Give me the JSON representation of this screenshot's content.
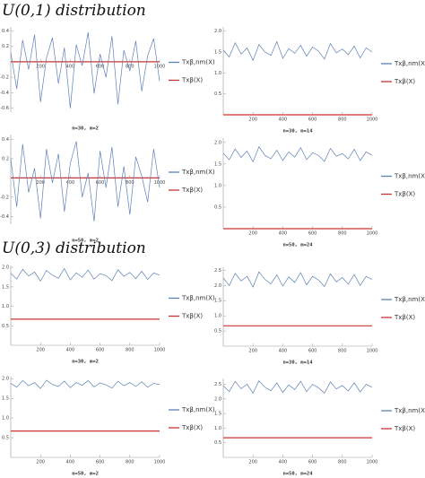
{
  "sections": [
    {
      "title": "U(0,1) distribution"
    },
    {
      "title": "U(0,3) distribution"
    }
  ],
  "chart_data": [
    {
      "type": "line",
      "caption": "n=30, m=2",
      "x": [
        0,
        40,
        80,
        120,
        160,
        200,
        240,
        280,
        320,
        360,
        400,
        440,
        480,
        520,
        560,
        600,
        640,
        680,
        720,
        760,
        800,
        840,
        880,
        920,
        960,
        1000
      ],
      "xlim": [
        0,
        1000
      ],
      "xticks": [
        200,
        400,
        600,
        800,
        1000
      ],
      "ylim": [
        -0.65,
        0.45
      ],
      "yticks": [
        -0.6,
        -0.4,
        -0.2,
        0.2,
        0.4
      ],
      "series": [
        {
          "name": "Txβ,nm(X)",
          "color": "#5e81b5",
          "values": [
            0.12,
            -0.35,
            0.28,
            -0.1,
            0.35,
            -0.52,
            0.05,
            0.31,
            -0.28,
            0.18,
            -0.6,
            0.22,
            -0.05,
            0.38,
            -0.41,
            0.1,
            -0.2,
            0.33,
            -0.55,
            0.15,
            -0.12,
            0.27,
            -0.38,
            0.08,
            0.3,
            -0.25
          ]
        },
        {
          "name": "Txβ(X)",
          "color": "#cc3333",
          "values": [
            0,
            0,
            0,
            0,
            0,
            0,
            0,
            0,
            0,
            0,
            0,
            0,
            0,
            0,
            0,
            0,
            0,
            0,
            0,
            0,
            0,
            0,
            0,
            0,
            0,
            0
          ]
        }
      ]
    },
    {
      "type": "line",
      "caption": "n=30, m=14",
      "x": [
        0,
        40,
        80,
        120,
        160,
        200,
        240,
        280,
        320,
        360,
        400,
        440,
        480,
        520,
        560,
        600,
        640,
        680,
        720,
        760,
        800,
        840,
        880,
        920,
        960,
        1000
      ],
      "xlim": [
        0,
        1000
      ],
      "xticks": [
        200,
        400,
        600,
        800,
        1000
      ],
      "ylim": [
        0,
        2.1
      ],
      "yticks": [
        0.5,
        {
          "value": 1,
          "label": "1.0"
        },
        1.5,
        {
          "value": 2,
          "label": "2.0"
        }
      ],
      "series": [
        {
          "name": "Txβ,nm(X)",
          "color": "#5e81b5",
          "values": [
            1.55,
            1.38,
            1.72,
            1.45,
            1.6,
            1.3,
            1.68,
            1.5,
            1.42,
            1.75,
            1.35,
            1.58,
            1.47,
            1.66,
            1.4,
            1.62,
            1.52,
            1.33,
            1.7,
            1.48,
            1.57,
            1.44,
            1.64,
            1.36,
            1.6,
            1.5
          ]
        },
        {
          "name": "Txβ(X)",
          "color": "#cc3333",
          "values": [
            0,
            0,
            0,
            0,
            0,
            0,
            0,
            0,
            0,
            0,
            0,
            0,
            0,
            0,
            0,
            0,
            0,
            0,
            0,
            0,
            0,
            0,
            0,
            0,
            0,
            0
          ]
        }
      ]
    },
    {
      "type": "line",
      "caption": "n=50, m=2",
      "x": [
        0,
        40,
        80,
        120,
        160,
        200,
        240,
        280,
        320,
        360,
        400,
        440,
        480,
        520,
        560,
        600,
        640,
        680,
        720,
        760,
        800,
        840,
        880,
        920,
        960,
        1000
      ],
      "xlim": [
        0,
        1000
      ],
      "xticks": [
        200,
        400,
        600,
        800,
        1000
      ],
      "ylim": [
        -0.48,
        0.45
      ],
      "yticks": [
        -0.4,
        -0.2,
        0.2,
        0.4
      ],
      "series": [
        {
          "name": "Txβ,nm(X)",
          "color": "#5e81b5",
          "values": [
            0.2,
            -0.3,
            0.35,
            -0.15,
            0.1,
            -0.42,
            0.3,
            -0.05,
            0.25,
            -0.35,
            0.15,
            0.38,
            -0.2,
            0.05,
            -0.45,
            0.28,
            -0.1,
            0.32,
            -0.3,
            0.12,
            -0.38,
            0.22,
            0.02,
            -0.25,
            0.3,
            -0.1
          ]
        },
        {
          "name": "Txβ(X)",
          "color": "#cc3333",
          "values": [
            0,
            0,
            0,
            0,
            0,
            0,
            0,
            0,
            0,
            0,
            0,
            0,
            0,
            0,
            0,
            0,
            0,
            0,
            0,
            0,
            0,
            0,
            0,
            0,
            0,
            0
          ]
        }
      ]
    },
    {
      "type": "line",
      "caption": "n=50, m=24",
      "x": [
        0,
        40,
        80,
        120,
        160,
        200,
        240,
        280,
        320,
        360,
        400,
        440,
        480,
        520,
        560,
        600,
        640,
        680,
        720,
        760,
        800,
        840,
        880,
        920,
        960,
        1000
      ],
      "xlim": [
        0,
        1000
      ],
      "xticks": [
        200,
        400,
        600,
        800,
        1000
      ],
      "ylim": [
        0,
        2.1
      ],
      "yticks": [
        0.5,
        {
          "value": 1,
          "label": "1.0"
        },
        1.5,
        {
          "value": 2,
          "label": "2.0"
        }
      ],
      "series": [
        {
          "name": "Txβ,nm(X)",
          "color": "#5e81b5",
          "values": [
            1.75,
            1.6,
            1.85,
            1.65,
            1.8,
            1.55,
            1.9,
            1.7,
            1.62,
            1.82,
            1.58,
            1.78,
            1.66,
            1.88,
            1.6,
            1.76,
            1.7,
            1.56,
            1.86,
            1.68,
            1.74,
            1.62,
            1.84,
            1.58,
            1.78,
            1.7
          ]
        },
        {
          "name": "Txβ(X)",
          "color": "#cc3333",
          "values": [
            0,
            0,
            0,
            0,
            0,
            0,
            0,
            0,
            0,
            0,
            0,
            0,
            0,
            0,
            0,
            0,
            0,
            0,
            0,
            0,
            0,
            0,
            0,
            0,
            0,
            0
          ]
        }
      ]
    },
    {
      "type": "line",
      "caption": "n=30, m=2",
      "x": [
        0,
        40,
        80,
        120,
        160,
        200,
        240,
        280,
        320,
        360,
        400,
        440,
        480,
        520,
        560,
        600,
        640,
        680,
        720,
        760,
        800,
        840,
        880,
        920,
        960,
        1000
      ],
      "xlim": [
        0,
        1000
      ],
      "xticks": [
        200,
        400,
        600,
        800,
        1000
      ],
      "ylim": [
        0,
        2.05
      ],
      "yticks": [
        0.5,
        {
          "value": 1,
          "label": "1.0"
        },
        1.5,
        {
          "value": 2,
          "label": "2.0"
        }
      ],
      "series": [
        {
          "name": "Txβ,nm(X)",
          "color": "#5e81b5",
          "values": [
            1.85,
            1.7,
            1.95,
            1.78,
            1.88,
            1.65,
            1.92,
            1.8,
            1.72,
            1.97,
            1.68,
            1.86,
            1.75,
            1.93,
            1.7,
            1.84,
            1.79,
            1.66,
            1.94,
            1.77,
            1.87,
            1.71,
            1.9,
            1.69,
            1.86,
            1.8
          ]
        },
        {
          "name": "Txβ(X)",
          "color": "#cc3333",
          "values": [
            0.67,
            0.67,
            0.67,
            0.67,
            0.67,
            0.67,
            0.67,
            0.67,
            0.67,
            0.67,
            0.67,
            0.67,
            0.67,
            0.67,
            0.67,
            0.67,
            0.67,
            0.67,
            0.67,
            0.67,
            0.67,
            0.67,
            0.67,
            0.67,
            0.67,
            0.67
          ]
        }
      ]
    },
    {
      "type": "line",
      "caption": "n=30, m=14",
      "x": [
        0,
        40,
        80,
        120,
        160,
        200,
        240,
        280,
        320,
        360,
        400,
        440,
        480,
        520,
        560,
        600,
        640,
        680,
        720,
        760,
        800,
        840,
        880,
        920,
        960,
        1000
      ],
      "xlim": [
        0,
        1000
      ],
      "xticks": [
        200,
        400,
        600,
        800,
        1000
      ],
      "ylim": [
        0,
        2.6
      ],
      "yticks": [
        0.5,
        {
          "value": 1,
          "label": "1.0"
        },
        1.5,
        {
          "value": 2,
          "label": "2.0"
        },
        2.5
      ],
      "series": [
        {
          "name": "Txβ,nm(X)",
          "color": "#5e81b5",
          "values": [
            2.25,
            2.0,
            2.4,
            2.15,
            2.3,
            1.95,
            2.45,
            2.2,
            2.05,
            2.35,
            1.98,
            2.28,
            2.1,
            2.42,
            2.02,
            2.3,
            2.18,
            1.96,
            2.38,
            2.12,
            2.26,
            2.04,
            2.36,
            2.0,
            2.3,
            2.2
          ]
        },
        {
          "name": "Txβ(X)",
          "color": "#cc3333",
          "values": [
            0.67,
            0.67,
            0.67,
            0.67,
            0.67,
            0.67,
            0.67,
            0.67,
            0.67,
            0.67,
            0.67,
            0.67,
            0.67,
            0.67,
            0.67,
            0.67,
            0.67,
            0.67,
            0.67,
            0.67,
            0.67,
            0.67,
            0.67,
            0.67,
            0.67,
            0.67
          ]
        }
      ]
    },
    {
      "type": "line",
      "caption": "n=50, m=2",
      "x": [
        0,
        40,
        80,
        120,
        160,
        200,
        240,
        280,
        320,
        360,
        400,
        440,
        480,
        520,
        560,
        600,
        640,
        680,
        720,
        760,
        800,
        840,
        880,
        920,
        960,
        1000
      ],
      "xlim": [
        0,
        1000
      ],
      "xticks": [
        200,
        400,
        600,
        800,
        1000
      ],
      "ylim": [
        0,
        2.05
      ],
      "yticks": [
        0.5,
        {
          "value": 1,
          "label": "1.0"
        },
        1.5,
        {
          "value": 2,
          "label": "2.0"
        }
      ],
      "series": [
        {
          "name": "Txβ,nm(X)",
          "color": "#5e81b5",
          "values": [
            1.88,
            1.78,
            1.95,
            1.82,
            1.9,
            1.75,
            1.96,
            1.85,
            1.8,
            1.94,
            1.77,
            1.9,
            1.83,
            1.95,
            1.79,
            1.89,
            1.84,
            1.76,
            1.93,
            1.82,
            1.9,
            1.8,
            1.92,
            1.78,
            1.88,
            1.85
          ]
        },
        {
          "name": "Txβ(X)",
          "color": "#cc3333",
          "values": [
            0.67,
            0.67,
            0.67,
            0.67,
            0.67,
            0.67,
            0.67,
            0.67,
            0.67,
            0.67,
            0.67,
            0.67,
            0.67,
            0.67,
            0.67,
            0.67,
            0.67,
            0.67,
            0.67,
            0.67,
            0.67,
            0.67,
            0.67,
            0.67,
            0.67,
            0.67
          ]
        }
      ]
    },
    {
      "type": "line",
      "caption": "n=50, m=24",
      "x": [
        0,
        40,
        80,
        120,
        160,
        200,
        240,
        280,
        320,
        360,
        400,
        440,
        480,
        520,
        560,
        600,
        640,
        680,
        720,
        760,
        800,
        840,
        880,
        920,
        960,
        1000
      ],
      "xlim": [
        0,
        1000
      ],
      "xticks": [
        200,
        400,
        600,
        800,
        1000
      ],
      "ylim": [
        0,
        2.7
      ],
      "yticks": [
        0.5,
        {
          "value": 1,
          "label": "1.0"
        },
        1.5,
        {
          "value": 2,
          "label": "2.0"
        },
        2.5
      ],
      "series": [
        {
          "name": "Txβ,nm(X)",
          "color": "#5e81b5",
          "values": [
            2.45,
            2.25,
            2.6,
            2.35,
            2.5,
            2.2,
            2.62,
            2.4,
            2.28,
            2.55,
            2.22,
            2.48,
            2.32,
            2.6,
            2.25,
            2.5,
            2.38,
            2.2,
            2.58,
            2.34,
            2.46,
            2.27,
            2.55,
            2.24,
            2.5,
            2.4
          ]
        },
        {
          "name": "Txβ(X)",
          "color": "#cc3333",
          "values": [
            0.67,
            0.67,
            0.67,
            0.67,
            0.67,
            0.67,
            0.67,
            0.67,
            0.67,
            0.67,
            0.67,
            0.67,
            0.67,
            0.67,
            0.67,
            0.67,
            0.67,
            0.67,
            0.67,
            0.67,
            0.67,
            0.67,
            0.67,
            0.67,
            0.67,
            0.67
          ]
        }
      ]
    }
  ]
}
